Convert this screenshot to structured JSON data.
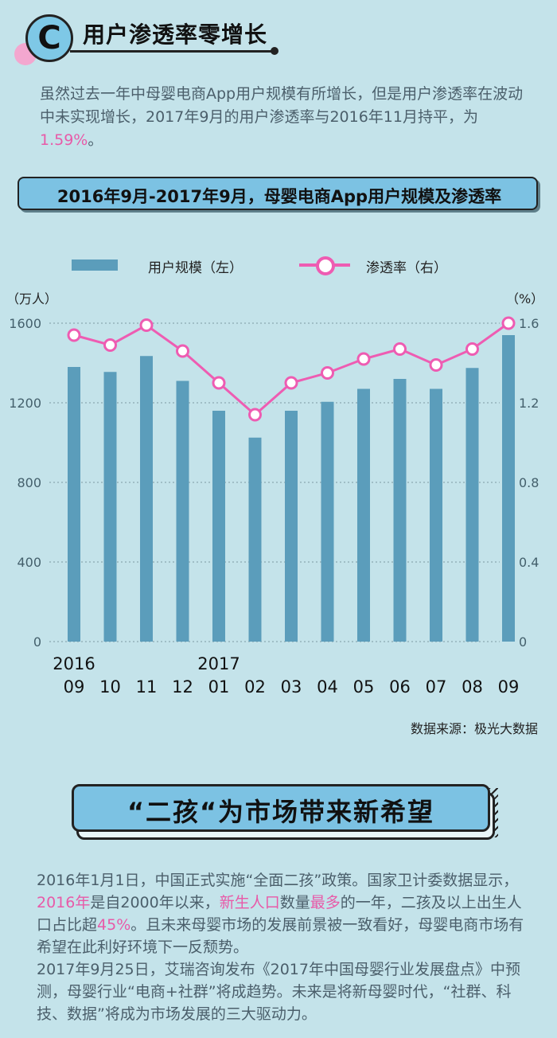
{
  "section_c": {
    "letter": "C",
    "title": "用户渗透率零增长"
  },
  "intro": {
    "text_before": "虽然过去一年中母婴电商App用户规模有所增长，但是用户渗透率在波动中未实现增长，2017年9月的用户渗透率与2016年11月持平，为",
    "highlight": "1.59%",
    "text_after": "。"
  },
  "chart_title": "2016年9月-2017年9月，母婴电商App用户规模及渗透率",
  "legend": {
    "bar_label": "用户规模（左）",
    "line_label": "渗透率（右）"
  },
  "source": "数据来源：极光大数据",
  "chart_data": {
    "type": "bar",
    "title": "2016年9月-2017年9月，母婴电商App用户规模及渗透率",
    "categories": [
      "09",
      "10",
      "11",
      "12",
      "01",
      "02",
      "03",
      "04",
      "05",
      "06",
      "07",
      "08",
      "09"
    ],
    "year_labels": [
      {
        "index": 0,
        "label": "2016"
      },
      {
        "index": 4,
        "label": "2017"
      }
    ],
    "series": [
      {
        "name": "用户规模（左）",
        "type": "bar",
        "axis": "left",
        "values": [
          1380,
          1355,
          1435,
          1310,
          1160,
          1025,
          1160,
          1205,
          1270,
          1320,
          1270,
          1375,
          1540
        ]
      },
      {
        "name": "渗透率（右）",
        "type": "line",
        "axis": "right",
        "values": [
          1.54,
          1.49,
          1.59,
          1.46,
          1.3,
          1.14,
          1.3,
          1.35,
          1.42,
          1.47,
          1.39,
          1.47,
          1.6
        ]
      }
    ],
    "y_left": {
      "unit": "（万人）",
      "ticks": [
        0,
        400,
        800,
        1200,
        1600
      ],
      "ylim": [
        0,
        1600
      ]
    },
    "y_right": {
      "unit": "（%）",
      "ticks": [
        "0",
        "0.4",
        "0.8",
        "1.2",
        "1.6"
      ],
      "ylim": [
        0,
        1.6
      ]
    },
    "colors": {
      "bar": "#5b9dbb",
      "line": "#ee5cb2"
    },
    "grid": "dotted"
  },
  "section2": {
    "title": "“二孩“为市场带来新希望"
  },
  "para2": {
    "t1": "2016年1月1日，中国正式实施“全面二孩”政策。国家卫计委数据显示，",
    "h1": "2016年",
    "t2": "是自2000年以来，",
    "h2": "新生人口",
    "t3": "数量",
    "h3": "最多",
    "t4": "的一年，二孩及以上出生人口占比超",
    "h4": "45%",
    "t5": "。且未来母婴市场的发展前景被一致看好，母婴电商市场有希望在此利好环境下一反颓势。",
    "t6": "2017年9月25日，艾瑞咨询发布《2017年中国母婴行业发展盘点》中预测，母婴行业“电商+社群”将成趋势。未来是将新母婴时代，“社群、科技、数据”将成为市场发展的三大驱动力。"
  }
}
